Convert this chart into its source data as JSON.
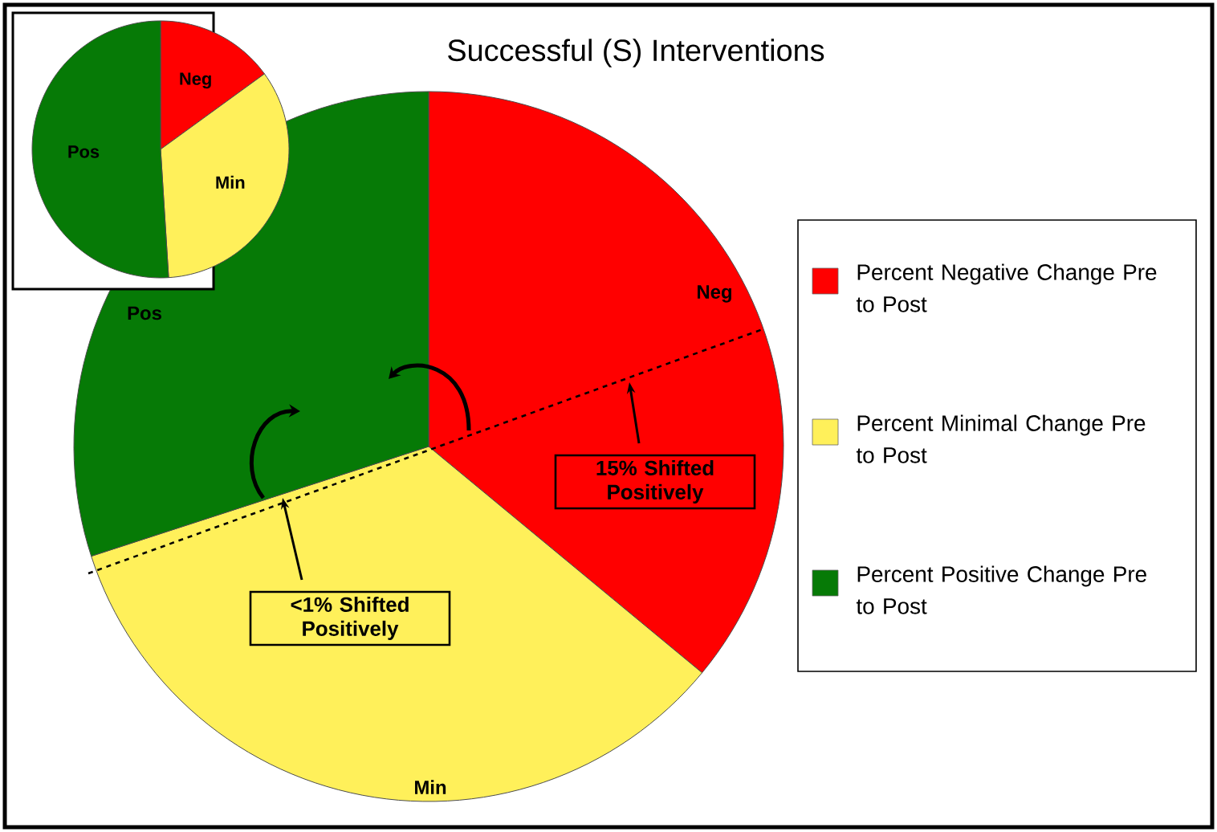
{
  "chart_data": [
    {
      "type": "pie",
      "title": "Successful (S) Interventions",
      "categories": [
        "Percent Negative Change Pre to Post",
        "Percent Minimal Change Pre to Post",
        "Percent Positive Change Pre to Post"
      ],
      "values": [
        36,
        34,
        30
      ],
      "colors": [
        "#ff0000",
        "#fff05a",
        "#067a06"
      ],
      "legend": "right",
      "annotations": [
        "Neg",
        "Min",
        "Pos",
        "15% Shifted Positively",
        "<1% Shifted Positively"
      ]
    },
    {
      "type": "pie",
      "categories": [
        "Neg",
        "Min",
        "Pos"
      ],
      "values": [
        15,
        34,
        51
      ],
      "colors": [
        "#ff0000",
        "#fff05a",
        "#067a06"
      ]
    }
  ]
}
